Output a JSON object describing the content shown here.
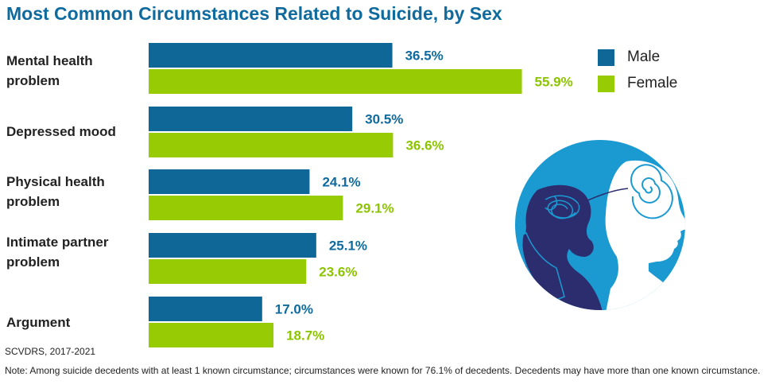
{
  "title": "Most Common Circumstances Related to Suicide, by Sex",
  "legend": [
    {
      "label": "Male",
      "color": "#0e6797"
    },
    {
      "label": "Female",
      "color": "#97cc04"
    }
  ],
  "category_labels": [
    "Mental health\nproblem",
    "Depressed mood",
    "Physical health\nproblem",
    "Intimate partner\nproblem",
    "Argument"
  ],
  "chart_data": {
    "type": "bar",
    "orientation": "horizontal",
    "title": "Most Common Circumstances Related to Suicide, by Sex",
    "categories": [
      "Mental health problem",
      "Depressed mood",
      "Physical health problem",
      "Intimate partner problem",
      "Argument"
    ],
    "series": [
      {
        "name": "Male",
        "color": "#0e6797",
        "values": [
          36.5,
          30.5,
          24.1,
          25.1,
          17.0
        ],
        "labels": [
          "36.5%",
          "30.5%",
          "24.1%",
          "25.1%",
          "17.0%"
        ]
      },
      {
        "name": "Female",
        "color": "#97cc04",
        "values": [
          55.9,
          36.6,
          29.1,
          23.6,
          18.7
        ],
        "labels": [
          "55.9%",
          "36.6%",
          "29.1%",
          "23.6%",
          "18.7%"
        ]
      }
    ],
    "xlabel": "",
    "ylabel": "",
    "grid": false,
    "legend_position": "top-right"
  },
  "source": "SCVDRS, 2017-2021",
  "note": "Note: Among suicide decedents with at least 1 known circumstance; circumstances were known for 76.1% of decedents. Decedents may have more than one known circumstance.",
  "illustration": {
    "icon": "head-spiral-illustration",
    "circle_color": "#1b9ad1",
    "figure_color": "#2c2d6e"
  }
}
